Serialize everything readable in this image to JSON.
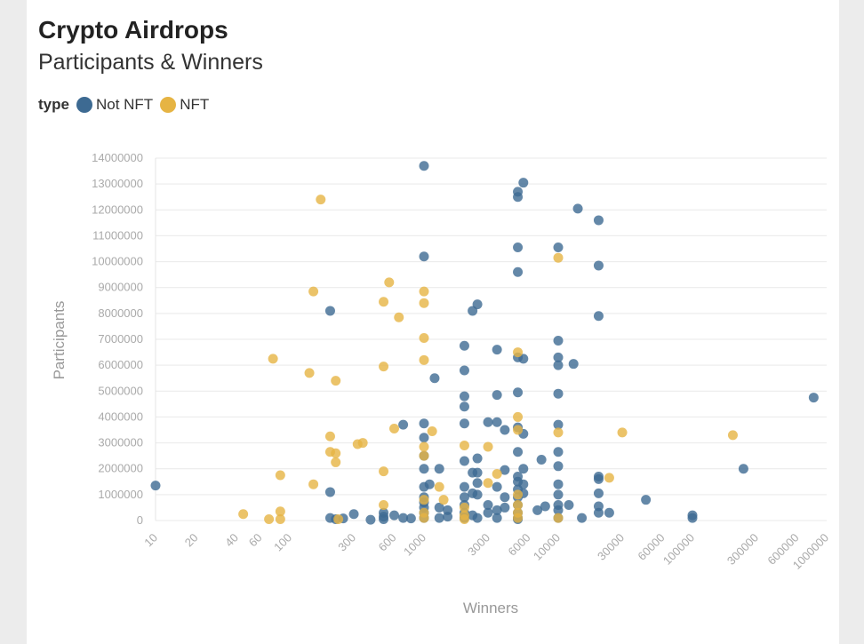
{
  "title": "Crypto Airdrops",
  "subtitle": "Participants & Winners",
  "legend": {
    "label": "type",
    "items": [
      {
        "name": "Not NFT",
        "color": "#3d6a92"
      },
      {
        "name": "NFT",
        "color": "#e6b443"
      }
    ]
  },
  "chart_data": {
    "type": "scatter",
    "title": "Crypto Airdrops",
    "subtitle": "Participants & Winners",
    "xlabel": "Winners",
    "ylabel": "Participants",
    "xscale": "log",
    "xlim": [
      10,
      1000000
    ],
    "ylim": [
      0,
      14000000
    ],
    "x_ticks": [
      10,
      20,
      40,
      60,
      100,
      300,
      600,
      1000,
      3000,
      6000,
      10000,
      30000,
      60000,
      100000,
      300000,
      600000,
      1000000
    ],
    "x_tick_labels": [
      "10",
      "20",
      "40",
      "60",
      "100",
      "300",
      "600",
      "1000",
      "3000",
      "6000",
      "10000",
      "30000",
      "60000",
      "100000",
      "300000",
      "600000",
      "1000000"
    ],
    "y_ticks": [
      0,
      1000000,
      2000000,
      3000000,
      4000000,
      5000000,
      6000000,
      7000000,
      8000000,
      9000000,
      10000000,
      11000000,
      12000000,
      13000000,
      14000000
    ],
    "y_tick_labels": [
      "0",
      "1000000",
      "2000000",
      "3000000",
      "4000000",
      "5000000",
      "6000000",
      "7000000",
      "8000000",
      "9000000",
      "10000000",
      "11000000",
      "12000000",
      "13000000",
      "14000000"
    ],
    "series": [
      {
        "name": "Not NFT",
        "color": "#3d6a92",
        "points": [
          [
            10,
            1350000
          ],
          [
            200,
            8100000
          ],
          [
            200,
            1100000
          ],
          [
            200,
            100000
          ],
          [
            220,
            50000
          ],
          [
            250,
            80000
          ],
          [
            300,
            250000
          ],
          [
            400,
            30000
          ],
          [
            500,
            300000
          ],
          [
            500,
            150000
          ],
          [
            500,
            50000
          ],
          [
            600,
            200000
          ],
          [
            700,
            3700000
          ],
          [
            700,
            100000
          ],
          [
            800,
            80000
          ],
          [
            1000,
            13700000
          ],
          [
            1000,
            10200000
          ],
          [
            1000,
            3750000
          ],
          [
            1000,
            3200000
          ],
          [
            1000,
            2500000
          ],
          [
            1000,
            2000000
          ],
          [
            1000,
            1300000
          ],
          [
            1000,
            900000
          ],
          [
            1000,
            700000
          ],
          [
            1000,
            500000
          ],
          [
            1000,
            300000
          ],
          [
            1000,
            100000
          ],
          [
            1100,
            1400000
          ],
          [
            1200,
            5500000
          ],
          [
            1300,
            2000000
          ],
          [
            1300,
            500000
          ],
          [
            1300,
            100000
          ],
          [
            1500,
            400000
          ],
          [
            1500,
            150000
          ],
          [
            2000,
            6750000
          ],
          [
            2000,
            5800000
          ],
          [
            2000,
            4800000
          ],
          [
            2000,
            4400000
          ],
          [
            2000,
            3750000
          ],
          [
            2000,
            2300000
          ],
          [
            2000,
            1300000
          ],
          [
            2000,
            900000
          ],
          [
            2000,
            600000
          ],
          [
            2000,
            300000
          ],
          [
            2000,
            100000
          ],
          [
            2300,
            8100000
          ],
          [
            2300,
            1850000
          ],
          [
            2300,
            1050000
          ],
          [
            2300,
            200000
          ],
          [
            2500,
            8350000
          ],
          [
            2500,
            2400000
          ],
          [
            2500,
            1850000
          ],
          [
            2500,
            1450000
          ],
          [
            2500,
            1000000
          ],
          [
            2500,
            100000
          ],
          [
            3000,
            3800000
          ],
          [
            3000,
            600000
          ],
          [
            3000,
            300000
          ],
          [
            3500,
            6600000
          ],
          [
            3500,
            4850000
          ],
          [
            3500,
            3800000
          ],
          [
            3500,
            1300000
          ],
          [
            3500,
            400000
          ],
          [
            3500,
            100000
          ],
          [
            4000,
            3500000
          ],
          [
            4000,
            1950000
          ],
          [
            4000,
            900000
          ],
          [
            4000,
            500000
          ],
          [
            5000,
            12700000
          ],
          [
            5000,
            12500000
          ],
          [
            5000,
            10550000
          ],
          [
            5000,
            9600000
          ],
          [
            5000,
            6300000
          ],
          [
            5000,
            4950000
          ],
          [
            5000,
            3600000
          ],
          [
            5000,
            2650000
          ],
          [
            5000,
            1700000
          ],
          [
            5000,
            1500000
          ],
          [
            5000,
            1200000
          ],
          [
            5000,
            900000
          ],
          [
            5000,
            600000
          ],
          [
            5000,
            300000
          ],
          [
            5000,
            100000
          ],
          [
            5000,
            50000
          ],
          [
            5500,
            13050000
          ],
          [
            5500,
            6250000
          ],
          [
            5500,
            3350000
          ],
          [
            5500,
            2000000
          ],
          [
            5500,
            1400000
          ],
          [
            5500,
            1050000
          ],
          [
            7000,
            400000
          ],
          [
            7500,
            2350000
          ],
          [
            8000,
            550000
          ],
          [
            10000,
            10550000
          ],
          [
            10000,
            6950000
          ],
          [
            10000,
            6300000
          ],
          [
            10000,
            6000000
          ],
          [
            10000,
            4900000
          ],
          [
            10000,
            3700000
          ],
          [
            10000,
            2650000
          ],
          [
            10000,
            2100000
          ],
          [
            10000,
            1400000
          ],
          [
            10000,
            1000000
          ],
          [
            10000,
            600000
          ],
          [
            10000,
            400000
          ],
          [
            10000,
            100000
          ],
          [
            12000,
            600000
          ],
          [
            13000,
            6050000
          ],
          [
            14000,
            12050000
          ],
          [
            15000,
            100000
          ],
          [
            20000,
            11600000
          ],
          [
            20000,
            9850000
          ],
          [
            20000,
            7900000
          ],
          [
            20000,
            1700000
          ],
          [
            20000,
            1600000
          ],
          [
            20000,
            1050000
          ],
          [
            20000,
            550000
          ],
          [
            20000,
            300000
          ],
          [
            24000,
            300000
          ],
          [
            45000,
            800000
          ],
          [
            100000,
            200000
          ],
          [
            100000,
            100000
          ],
          [
            240000,
            2000000
          ],
          [
            800000,
            4750000
          ]
        ]
      },
      {
        "name": "NFT",
        "color": "#e6b443",
        "points": [
          [
            45,
            250000
          ],
          [
            70,
            50000
          ],
          [
            75,
            6250000
          ],
          [
            85,
            1750000
          ],
          [
            85,
            350000
          ],
          [
            85,
            50000
          ],
          [
            140,
            5700000
          ],
          [
            150,
            8850000
          ],
          [
            150,
            1400000
          ],
          [
            170,
            12400000
          ],
          [
            200,
            3250000
          ],
          [
            200,
            2650000
          ],
          [
            220,
            5400000
          ],
          [
            220,
            2600000
          ],
          [
            220,
            2250000
          ],
          [
            230,
            50000
          ],
          [
            320,
            2950000
          ],
          [
            350,
            3000000
          ],
          [
            500,
            8450000
          ],
          [
            500,
            5950000
          ],
          [
            500,
            1900000
          ],
          [
            500,
            600000
          ],
          [
            550,
            9200000
          ],
          [
            600,
            3550000
          ],
          [
            650,
            7850000
          ],
          [
            1000,
            8850000
          ],
          [
            1000,
            8400000
          ],
          [
            1000,
            7050000
          ],
          [
            1000,
            6200000
          ],
          [
            1000,
            2850000
          ],
          [
            1000,
            2500000
          ],
          [
            1000,
            800000
          ],
          [
            1000,
            300000
          ],
          [
            1000,
            100000
          ],
          [
            1150,
            3450000
          ],
          [
            1300,
            1300000
          ],
          [
            1400,
            800000
          ],
          [
            2000,
            2900000
          ],
          [
            2000,
            500000
          ],
          [
            2000,
            200000
          ],
          [
            2000,
            50000
          ],
          [
            3000,
            2850000
          ],
          [
            3000,
            1450000
          ],
          [
            3500,
            1800000
          ],
          [
            5000,
            6500000
          ],
          [
            5000,
            4000000
          ],
          [
            5000,
            3500000
          ],
          [
            5000,
            1000000
          ],
          [
            5000,
            600000
          ],
          [
            5000,
            300000
          ],
          [
            5000,
            100000
          ],
          [
            10000,
            10150000
          ],
          [
            10000,
            3400000
          ],
          [
            10000,
            100000
          ],
          [
            24000,
            1650000
          ],
          [
            30000,
            3400000
          ],
          [
            200000,
            3300000
          ]
        ]
      }
    ]
  }
}
